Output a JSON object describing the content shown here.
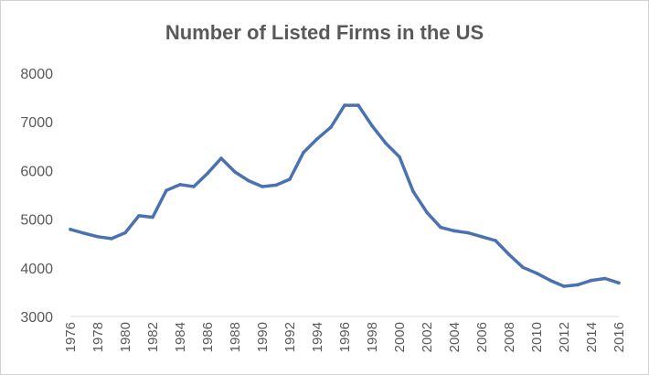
{
  "chart_data": {
    "type": "line",
    "title": "Number of Listed Firms in the US",
    "xlabel": "",
    "ylabel": "",
    "ylim": [
      3000,
      8000
    ],
    "yticks": [
      3000,
      4000,
      5000,
      6000,
      7000,
      8000
    ],
    "xticks": [
      1976,
      1978,
      1980,
      1982,
      1984,
      1986,
      1988,
      1990,
      1992,
      1994,
      1996,
      1998,
      2000,
      2002,
      2004,
      2006,
      2008,
      2010,
      2012,
      2014,
      2016
    ],
    "grid": false,
    "legend": "none",
    "series_color": "#4a72b0",
    "x": [
      1976,
      1977,
      1978,
      1979,
      1980,
      1981,
      1982,
      1983,
      1984,
      1985,
      1986,
      1987,
      1988,
      1989,
      1990,
      1991,
      1992,
      1993,
      1994,
      1995,
      1996,
      1997,
      1998,
      1999,
      2000,
      2001,
      2002,
      2003,
      2004,
      2005,
      2006,
      2007,
      2008,
      2009,
      2010,
      2011,
      2012,
      2013,
      2014,
      2015,
      2016
    ],
    "values": [
      4790,
      4710,
      4640,
      4600,
      4720,
      5070,
      5040,
      5590,
      5710,
      5670,
      5940,
      6250,
      5970,
      5790,
      5670,
      5700,
      5820,
      6370,
      6650,
      6890,
      7340,
      7340,
      6920,
      6560,
      6280,
      5570,
      5140,
      4830,
      4760,
      4720,
      4640,
      4560,
      4270,
      4010,
      3890,
      3740,
      3620,
      3650,
      3740,
      3780,
      3690
    ]
  }
}
